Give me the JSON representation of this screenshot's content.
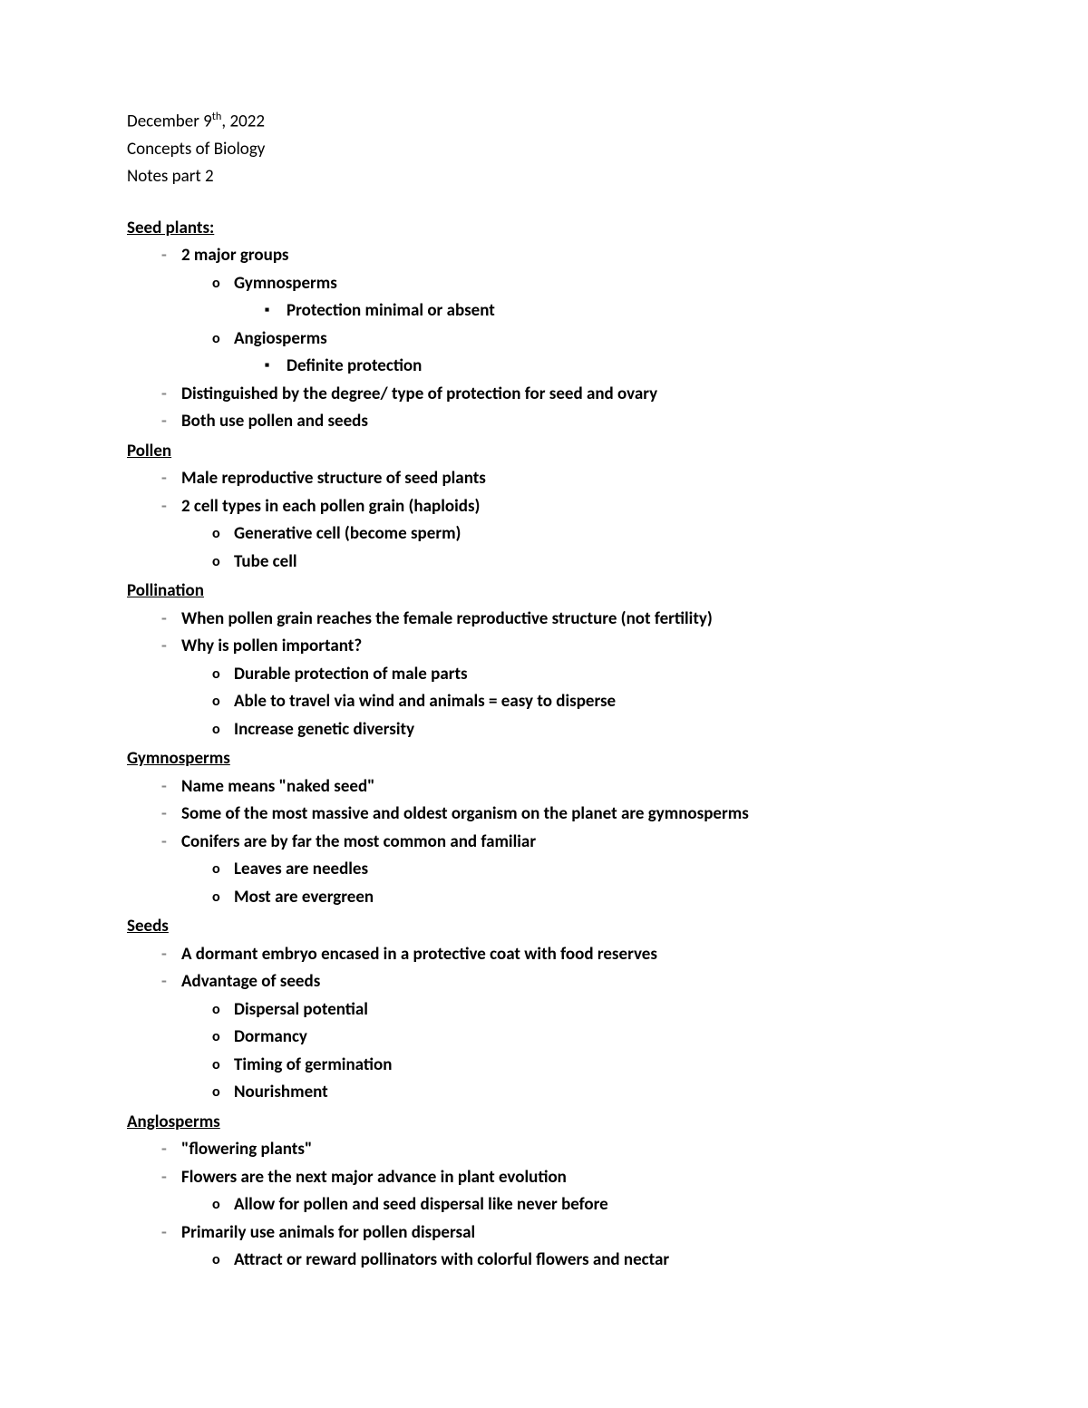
{
  "header": {
    "date_prefix": "December 9",
    "date_sup": "th",
    "date_suffix": ", 2022",
    "course": "Concepts of Biology",
    "part": "Notes part 2"
  },
  "sections": [
    {
      "heading": "Seed plants:",
      "items": [
        {
          "level": 1,
          "text": "2 major groups",
          "bold": true
        },
        {
          "level": 2,
          "text": "Gymnosperms",
          "bold": true
        },
        {
          "level": 3,
          "text": "Protection minimal or absent",
          "bold": true
        },
        {
          "level": 2,
          "text": "Angiosperms",
          "bold": true
        },
        {
          "level": 3,
          "text": "Definite protection",
          "bold": true
        },
        {
          "level": 1,
          "text": "Distinguished by the degree/ type of protection for seed and ovary",
          "bold": true
        },
        {
          "level": 1,
          "text": "Both use pollen and seeds",
          "bold": true
        }
      ]
    },
    {
      "heading": "Pollen",
      "items": [
        {
          "level": 1,
          "text": "Male reproductive structure of seed plants",
          "bold": true
        },
        {
          "level": 1,
          "text": "2 cell types in each pollen grain (haploids)",
          "bold": true
        },
        {
          "level": 2,
          "text": "Generative cell (become sperm)",
          "bold": true
        },
        {
          "level": 2,
          "text": "Tube cell",
          "bold": true
        }
      ]
    },
    {
      "heading": " Pollination",
      "items": [
        {
          "level": 1,
          "text": "When pollen grain reaches the female reproductive structure (not fertility)",
          "bold": true
        },
        {
          "level": 1,
          "text": "Why is pollen important?",
          "bold": true
        },
        {
          "level": 2,
          "text": "Durable protection of male parts",
          "bold": true
        },
        {
          "level": 2,
          "text": "Able to travel via wind and animals = easy to disperse",
          "bold": true
        },
        {
          "level": 2,
          "text": "Increase genetic diversity",
          "bold": true
        }
      ]
    },
    {
      "heading": "Gymnosperms",
      "items": [
        {
          "level": 1,
          "text": "Name means \"naked seed\"",
          "bold": true
        },
        {
          "level": 1,
          "text": "Some of the most massive and oldest organism on the planet are gymnosperms",
          "bold": true
        },
        {
          "level": 1,
          "text": "Conifers are by far the most common and familiar",
          "bold": true
        },
        {
          "level": 2,
          "text": "Leaves are needles",
          "bold": true
        },
        {
          "level": 2,
          "text": "Most are evergreen",
          "bold": true
        }
      ]
    },
    {
      "heading": "Seeds",
      "items": [
        {
          "level": 1,
          "text": "A dormant embryo encased in a protective coat with food reserves",
          "bold": true
        },
        {
          "level": 1,
          "text": "Advantage of seeds",
          "bold": true
        },
        {
          "level": 2,
          "text": "Dispersal potential",
          "bold": true
        },
        {
          "level": 2,
          "text": "Dormancy",
          "bold": true
        },
        {
          "level": 2,
          "text": "Timing of germination",
          "bold": true
        },
        {
          "level": 2,
          "text": "Nourishment",
          "bold": true
        }
      ]
    },
    {
      "heading": "Anglosperms",
      "items": [
        {
          "level": 1,
          "text": "\"flowering plants\"",
          "bold": true
        },
        {
          "level": 1,
          "text": "Flowers are the next major advance in plant evolution",
          "bold": true
        },
        {
          "level": 2,
          "text": "Allow for pollen and seed dispersal like never before",
          "bold": true
        },
        {
          "level": 1,
          "text": "Primarily use animals for pollen dispersal",
          "bold": true
        },
        {
          "level": 2,
          "text": "Attract or reward pollinators with colorful flowers and nectar",
          "bold": true
        }
      ]
    }
  ]
}
